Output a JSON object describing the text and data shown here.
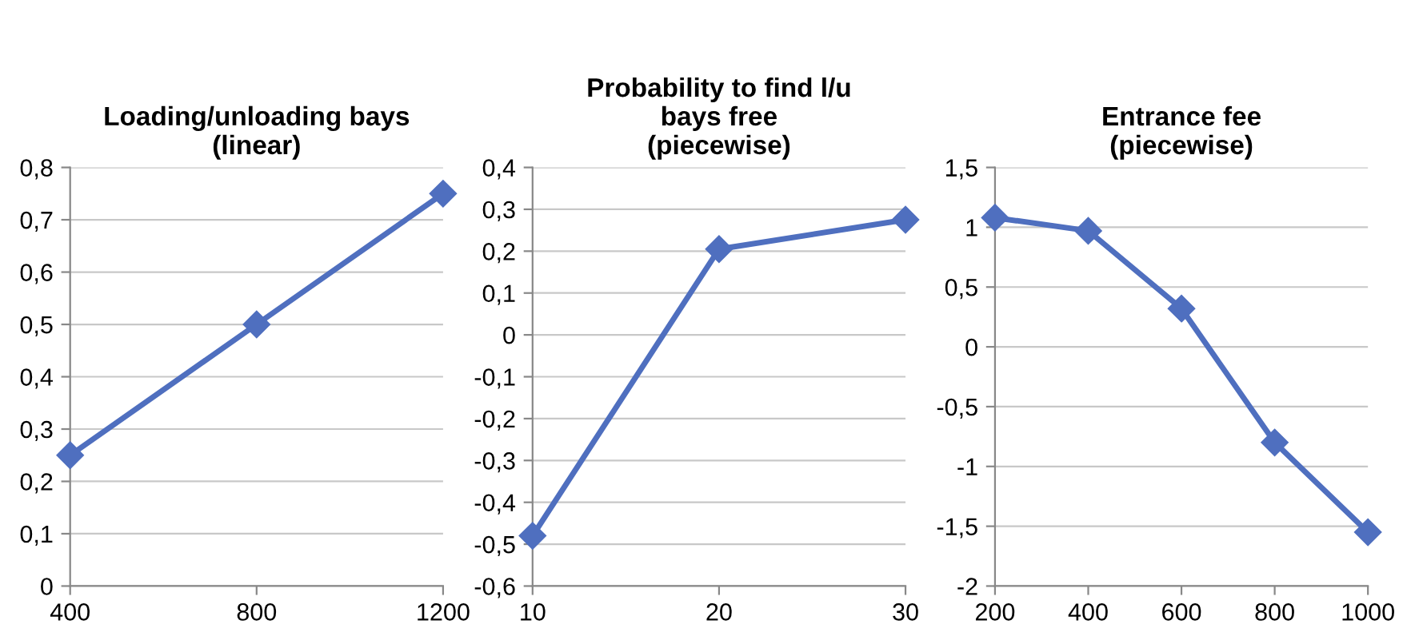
{
  "chart_data": [
    {
      "type": "line",
      "title": "Loading/unloading bays\n(linear)",
      "x": [
        400,
        800,
        1200
      ],
      "series": [
        {
          "color": "#4f6fbf",
          "values": [
            0.25,
            0.5,
            0.75
          ]
        }
      ],
      "xlim": [
        400,
        1200
      ],
      "xticks": [
        400,
        800,
        1200
      ],
      "ylim": [
        0,
        0.8
      ],
      "yticks": [
        0,
        {
          "value": 0.1,
          "label": "0,1"
        },
        {
          "value": 0.2,
          "label": "0,2"
        },
        {
          "value": 0.3,
          "label": "0,3"
        },
        {
          "value": 0.4,
          "label": "0,4"
        },
        {
          "value": 0.5,
          "label": "0,5"
        },
        {
          "value": 0.6,
          "label": "0,6"
        },
        {
          "value": 0.7,
          "label": "0,7"
        },
        {
          "value": 0.8,
          "label": "0,8"
        }
      ],
      "grid": "y",
      "marker": "diamond",
      "line_style": "solid",
      "legend": false
    },
    {
      "type": "line",
      "title": "Probability to find l/u\nbays free\n(piecewise)",
      "x": [
        10,
        20,
        30
      ],
      "series": [
        {
          "color": "#4f6fbf",
          "values": [
            -0.48,
            0.205,
            0.275
          ]
        }
      ],
      "xlim": [
        10,
        30
      ],
      "xticks": [
        10,
        20,
        30
      ],
      "ylim": [
        -0.6,
        0.4
      ],
      "yticks": [
        {
          "value": -0.6,
          "label": "-0,6"
        },
        {
          "value": -0.5,
          "label": "-0,5"
        },
        {
          "value": -0.4,
          "label": "-0,4"
        },
        {
          "value": -0.3,
          "label": "-0,3"
        },
        {
          "value": -0.2,
          "label": "-0,2"
        },
        {
          "value": -0.1,
          "label": "-0,1"
        },
        0,
        {
          "value": 0.1,
          "label": "0,1"
        },
        {
          "value": 0.2,
          "label": "0,2"
        },
        {
          "value": 0.3,
          "label": "0,3"
        },
        {
          "value": 0.4,
          "label": "0,4"
        }
      ],
      "grid": "y",
      "marker": "diamond",
      "line_style": "solid",
      "legend": false
    },
    {
      "type": "line",
      "title": "Entrance fee\n(piecewise)",
      "x": [
        200,
        400,
        600,
        800,
        1000
      ],
      "series": [
        {
          "color": "#4f6fbf",
          "values": [
            1.08,
            0.97,
            0.32,
            -0.8,
            -1.55
          ]
        }
      ],
      "xlim": [
        200,
        1000
      ],
      "xticks": [
        200,
        400,
        600,
        800,
        1000
      ],
      "ylim": [
        -2,
        1.5
      ],
      "yticks": [
        -2,
        {
          "value": -1.5,
          "label": "-1,5"
        },
        -1,
        {
          "value": -0.5,
          "label": "-0,5"
        },
        0,
        {
          "value": 0.5,
          "label": "0,5"
        },
        1,
        {
          "value": 1.5,
          "label": "1,5"
        }
      ],
      "grid": "y",
      "marker": "diamond",
      "line_style": "solid",
      "legend": false
    }
  ]
}
